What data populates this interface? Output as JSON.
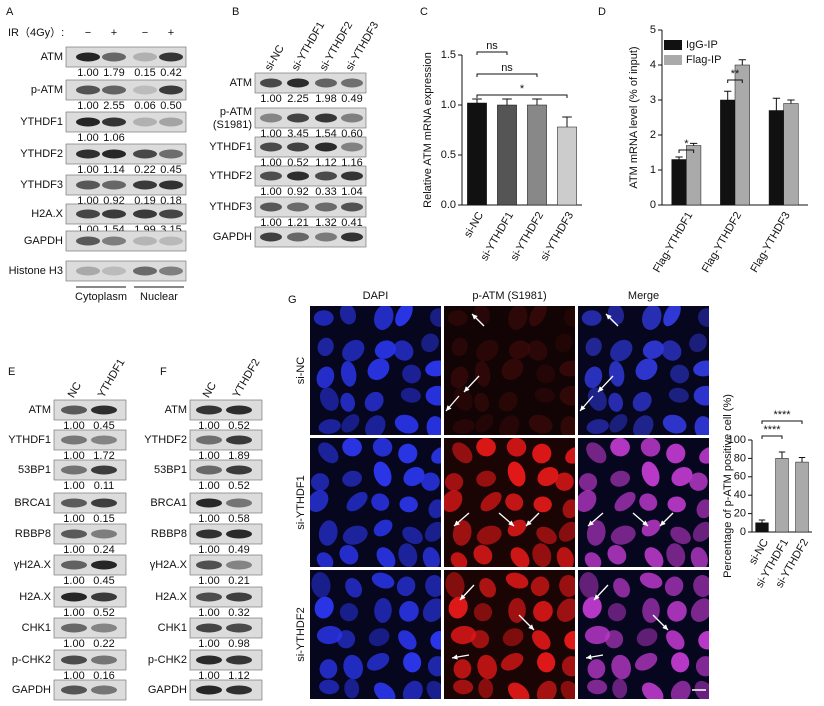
{
  "panels": {
    "A": {
      "letter": "A",
      "ir_label": "IR（4Gy）:",
      "signs": [
        "−",
        "+",
        "−",
        "+"
      ],
      "rows": [
        {
          "label": "ATM",
          "quant": [
            "1.00",
            "1.79",
            "0.15",
            "0.42"
          ]
        },
        {
          "label": "p-ATM",
          "quant": [
            "1.00",
            "2.55",
            "0.06",
            "0.50"
          ]
        },
        {
          "label": "YTHDF1",
          "quant": [
            "1.00",
            "1.06"
          ]
        },
        {
          "label": "YTHDF2",
          "quant": [
            "1.00",
            "1.14",
            "0.22",
            "0.45"
          ]
        },
        {
          "label": "YTHDF3",
          "quant": [
            "1.00",
            "0.92",
            "0.19",
            "0.18"
          ]
        },
        {
          "label": "H2A.X",
          "quant": [
            "1.00",
            "1.54",
            "1.99",
            "3.15"
          ]
        },
        {
          "label": "GAPDH"
        },
        {
          "label": "Histone H3"
        }
      ],
      "fractions": [
        "Cytoplasm",
        "Nuclear"
      ]
    },
    "B": {
      "letter": "B",
      "lanes": [
        "si-NC",
        "si-YTHDF1",
        "si-YTHDF2",
        "si-YTHDF3"
      ],
      "rows": [
        {
          "label": "ATM",
          "quant": [
            "1.00",
            "2.25",
            "1.98",
            "0.49"
          ]
        },
        {
          "label": [
            "p-ATM",
            "(S1981)"
          ],
          "quant": [
            "1.00",
            "3.45",
            "1.54",
            "0.60"
          ]
        },
        {
          "label": "YTHDF1",
          "quant": [
            "1.00",
            "0.52",
            "1.12",
            "1.16"
          ]
        },
        {
          "label": "YTHDF2",
          "quant": [
            "1.00",
            "0.92",
            "0.33",
            "1.04"
          ]
        },
        {
          "label": "YTHDF3",
          "quant": [
            "1.00",
            "1.21",
            "1.32",
            "0.41"
          ]
        },
        {
          "label": "GAPDH"
        }
      ]
    },
    "E": {
      "letter": "E",
      "lanes": [
        "NC",
        "YTHDF1"
      ],
      "rows": [
        {
          "label": "ATM",
          "quant": [
            "1.00",
            "0.45"
          ]
        },
        {
          "label": "YTHDF1",
          "quant": [
            "1.00",
            "1.72"
          ]
        },
        {
          "label": "53BP1",
          "quant": [
            "1.00",
            "0.11"
          ]
        },
        {
          "label": "BRCA1",
          "quant": [
            "1.00",
            "0.15"
          ]
        },
        {
          "label": "RBBP8",
          "quant": [
            "1.00",
            "0.24"
          ]
        },
        {
          "label": "γH2A.X",
          "quant": [
            "1.00",
            "0.45"
          ]
        },
        {
          "label": "H2A.X",
          "quant": [
            "1.00",
            "0.52"
          ]
        },
        {
          "label": "CHK1",
          "quant": [
            "1.00",
            "0.22"
          ]
        },
        {
          "label": "p-CHK2",
          "quant": [
            "1.00",
            "0.16"
          ]
        },
        {
          "label": "GAPDH"
        }
      ]
    },
    "F": {
      "letter": "F",
      "lanes": [
        "NC",
        "YTHDF2"
      ],
      "rows": [
        {
          "label": "ATM",
          "quant": [
            "1.00",
            "0.52"
          ]
        },
        {
          "label": "YTHDF2",
          "quant": [
            "1.00",
            "1.89"
          ]
        },
        {
          "label": "53BP1",
          "quant": [
            "1.00",
            "0.52"
          ]
        },
        {
          "label": "BRCA1",
          "quant": [
            "1.00",
            "0.58"
          ]
        },
        {
          "label": "RBBP8",
          "quant": [
            "1.00",
            "0.49"
          ]
        },
        {
          "label": "γH2A.X",
          "quant": [
            "1.00",
            "0.21"
          ]
        },
        {
          "label": "H2A.X",
          "quant": [
            "1.00",
            "0.32"
          ]
        },
        {
          "label": "CHK1",
          "quant": [
            "1.00",
            "0.98"
          ]
        },
        {
          "label": "p-CHK2",
          "quant": [
            "1.00",
            "1.12"
          ]
        },
        {
          "label": "GAPDH"
        }
      ]
    },
    "G": {
      "letter": "G",
      "channels": [
        "DAPI",
        "p-ATM (S1981)",
        "Merge"
      ],
      "conditions": [
        "si-NC",
        "si-YTHDF1",
        "si-YTHDF2"
      ]
    }
  },
  "chart_data": [
    {
      "type": "bar",
      "panel_label": "C",
      "ylabel": "Relative ATM mRNA expression",
      "categories": [
        "si-NC",
        "si-YTHDF1",
        "si-YTHDF2",
        "si-YTHDF3"
      ],
      "values": [
        1.02,
        1.0,
        1.0,
        0.78
      ],
      "errors": [
        0.04,
        0.06,
        0.06,
        0.1
      ],
      "colors": [
        "#111111",
        "#555555",
        "#888888",
        "#cccccc"
      ],
      "ylim": [
        0,
        1.5
      ],
      "yticks": [
        {
          "value": 0,
          "label": "0.0"
        },
        0.5,
        {
          "value": 1,
          "label": "1.0"
        },
        1.5
      ],
      "annotations": [
        "ns",
        "ns",
        "*"
      ]
    },
    {
      "type": "bar",
      "panel_label": "D",
      "ylabel": "ATM mRNA level (% of input)",
      "categories": [
        "Flag-YTHDF1",
        "Flag-YTHDF2",
        "Flag-YTHDF3"
      ],
      "series": [
        {
          "name": "IgG-IP",
          "color": "#111111",
          "values": [
            1.3,
            3.0,
            2.7
          ],
          "errors": [
            0.07,
            0.25,
            0.35
          ]
        },
        {
          "name": "Flag-IP",
          "color": "#aaaaaa",
          "values": [
            1.7,
            4.0,
            2.9
          ],
          "errors": [
            0.06,
            0.15,
            0.1
          ]
        }
      ],
      "ylim": [
        0,
        5
      ],
      "yticks": [
        0,
        1,
        2,
        3,
        4,
        5
      ],
      "legend": "top-left",
      "annotations": [
        "*",
        "**"
      ]
    },
    {
      "type": "bar",
      "ylabel": "Percentage of p-ATM positive cell (%)",
      "categories": [
        "si-NC",
        "si-YTHDF1",
        "si-YTHDF2"
      ],
      "values": [
        10,
        80,
        76
      ],
      "errors": [
        3,
        7,
        5
      ],
      "colors": [
        "#111111",
        "#aaaaaa",
        "#aaaaaa"
      ],
      "ylim": [
        0,
        100
      ],
      "yticks": [
        0,
        20,
        40,
        60,
        80,
        100
      ],
      "annotations": [
        "****",
        "****"
      ]
    }
  ]
}
